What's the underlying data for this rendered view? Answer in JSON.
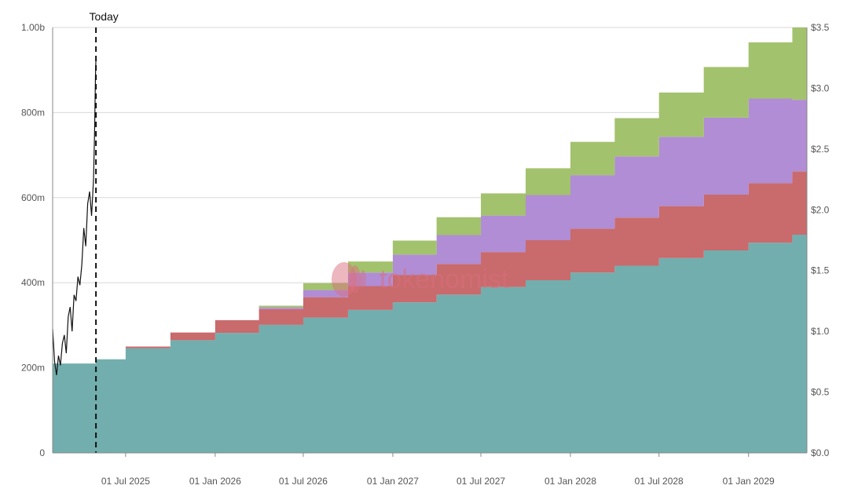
{
  "chart_data": {
    "type": "area",
    "stacked": true,
    "step": true,
    "annotation": "Today",
    "watermark": "tokenomist",
    "x_range": [
      "2025-02-01",
      "2029-05-01"
    ],
    "x_tick_labels": [
      {
        "date": "2025-07-01",
        "label": "01 Jul 2025"
      },
      {
        "date": "2026-01-01",
        "label": "01 Jan 2026"
      },
      {
        "date": "2026-07-01",
        "label": "01 Jul 2026"
      },
      {
        "date": "2027-01-01",
        "label": "01 Jan 2027"
      },
      {
        "date": "2027-07-01",
        "label": "01 Jul 2027"
      },
      {
        "date": "2028-01-01",
        "label": "01 Jan 2028"
      },
      {
        "date": "2028-07-01",
        "label": "01 Jul 2028"
      },
      {
        "date": "2029-01-01",
        "label": "01 Jan 2029"
      }
    ],
    "y_left": {
      "range": [
        0,
        1000000000
      ],
      "ticks": [
        {
          "value": 0,
          "label": "0"
        },
        {
          "value": 200000000,
          "label": "200m"
        },
        {
          "value": 400000000,
          "label": "400m"
        },
        {
          "value": 600000000,
          "label": "600m"
        },
        {
          "value": 800000000,
          "label": "800m"
        },
        {
          "value": 1000000000,
          "label": "1.00b"
        }
      ]
    },
    "y_right": {
      "range": [
        0,
        3.5
      ],
      "ticks": [
        {
          "value": 0,
          "label": "$0.0"
        },
        {
          "value": 0.5,
          "label": "$0.5"
        },
        {
          "value": 1.0,
          "label": "$1.0"
        },
        {
          "value": 1.5,
          "label": "$1.5"
        },
        {
          "value": 2.0,
          "label": "$2.0"
        },
        {
          "value": 2.5,
          "label": "$2.5"
        },
        {
          "value": 3.0,
          "label": "$3.0"
        },
        {
          "value": 3.5,
          "label": "$3.5"
        }
      ]
    },
    "today_date": "2025-05-01",
    "step_dates": [
      "2025-02-01",
      "2025-05-01",
      "2025-07-01",
      "2025-10-01",
      "2026-01-01",
      "2026-04-01",
      "2026-07-01",
      "2026-10-01",
      "2027-01-01",
      "2027-04-01",
      "2027-07-01",
      "2027-10-01",
      "2028-01-01",
      "2028-04-01",
      "2028-07-01",
      "2028-10-01",
      "2029-01-01",
      "2029-04-01",
      "2029-05-01"
    ],
    "series": [
      {
        "color": "#72aeae",
        "values": [
          210000000,
          220000000,
          246000000,
          265000000,
          282000000,
          301000000,
          318000000,
          336000000,
          354000000,
          372000000,
          390000000,
          406000000,
          424000000,
          440000000,
          458000000,
          476000000,
          494000000,
          513000000,
          513000000
        ]
      },
      {
        "color": "#c96a6c",
        "values": [
          0,
          0,
          4000000,
          18000000,
          30000000,
          37000000,
          48000000,
          56000000,
          64000000,
          72000000,
          82000000,
          94000000,
          103000000,
          113000000,
          122000000,
          131000000,
          140000000,
          149000000,
          149000000
        ]
      },
      {
        "color": "#b08dd4",
        "values": [
          0,
          0,
          0,
          0,
          0,
          4000000,
          17000000,
          32000000,
          48000000,
          68000000,
          86000000,
          106000000,
          126000000,
          144000000,
          163000000,
          181000000,
          199000000,
          168000000,
          168000000
        ]
      },
      {
        "color": "#a3c26d",
        "values": [
          0,
          0,
          0,
          0,
          0,
          4000000,
          16000000,
          26000000,
          33000000,
          42000000,
          52000000,
          63000000,
          78000000,
          90000000,
          104000000,
          119000000,
          132000000,
          170000000,
          170000000
        ]
      }
    ],
    "price": {
      "color": "#111111",
      "dates": [
        "2025-02-01",
        "2025-02-05",
        "2025-02-09",
        "2025-02-13",
        "2025-02-17",
        "2025-02-21",
        "2025-02-25",
        "2025-03-01",
        "2025-03-05",
        "2025-03-09",
        "2025-03-13",
        "2025-03-17",
        "2025-03-21",
        "2025-03-25",
        "2025-03-29",
        "2025-04-02",
        "2025-04-06",
        "2025-04-10",
        "2025-04-14",
        "2025-04-18",
        "2025-04-22",
        "2025-04-26",
        "2025-04-28",
        "2025-04-30",
        "2025-05-01"
      ],
      "values": [
        1.02,
        0.75,
        0.64,
        0.8,
        0.72,
        0.9,
        0.97,
        0.82,
        1.12,
        1.2,
        1.0,
        1.3,
        1.25,
        1.45,
        1.38,
        1.55,
        1.85,
        1.7,
        2.05,
        2.15,
        1.95,
        2.25,
        2.6,
        3.1,
        3.25
      ]
    }
  }
}
